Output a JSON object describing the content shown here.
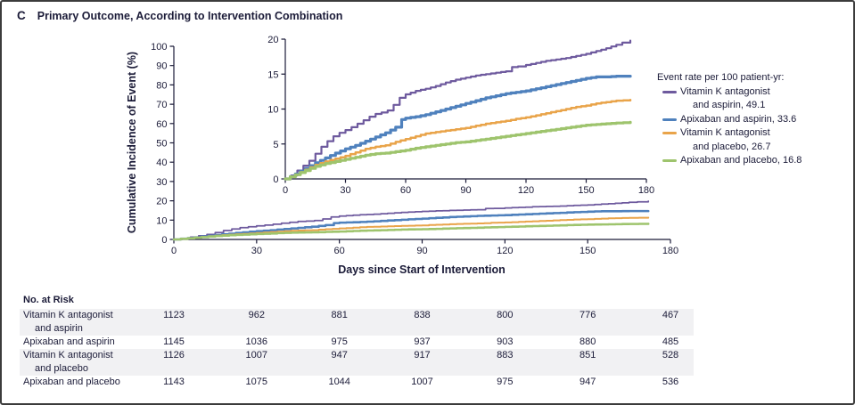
{
  "panel": {
    "letter": "C",
    "title": "Primary Outcome, According to Intervention Combination"
  },
  "chart_data": {
    "type": "line",
    "subtype": "kaplan-meier-cumulative-incidence",
    "xlabel": "Days since Start of Intervention",
    "ylabel": "Cumulative Incidence of Event (%)",
    "axis_color": "#1b1b38",
    "main_axis": {
      "xlim": [
        0,
        180
      ],
      "ylim": [
        0,
        100
      ],
      "xticks": [
        0,
        30,
        60,
        90,
        120,
        150,
        180
      ],
      "yticks": [
        0,
        10,
        20,
        30,
        40,
        50,
        60,
        70,
        80,
        90,
        100
      ],
      "grid": false
    },
    "inset_axis": {
      "xlim": [
        0,
        180
      ],
      "ylim": [
        0,
        20
      ],
      "xticks": [
        0,
        30,
        60,
        90,
        120,
        150,
        180
      ],
      "yticks": [
        0,
        5,
        10,
        15,
        20
      ],
      "grid": false
    },
    "legend_position": "right",
    "series": [
      {
        "id": "vka-aspirin",
        "name": "Vitamin K antagonist and aspirin",
        "event_rate_per_100_patient_yr": 49.1,
        "color": "#6e5a9e",
        "width": 2.2,
        "points": [
          [
            0,
            0
          ],
          [
            3,
            0.5
          ],
          [
            6,
            1.2
          ],
          [
            9,
            1.9
          ],
          [
            12,
            2.6
          ],
          [
            15,
            3.6
          ],
          [
            18,
            4.6
          ],
          [
            21,
            5.4
          ],
          [
            24,
            6.1
          ],
          [
            27,
            6.6
          ],
          [
            30,
            7.0
          ],
          [
            33,
            7.4
          ],
          [
            36,
            7.9
          ],
          [
            39,
            8.4
          ],
          [
            42,
            8.9
          ],
          [
            45,
            9.3
          ],
          [
            48,
            9.5
          ],
          [
            51,
            9.8
          ],
          [
            54,
            10.6
          ],
          [
            57,
            11.6
          ],
          [
            60,
            12.1
          ],
          [
            65,
            12.6
          ],
          [
            70,
            12.9
          ],
          [
            75,
            13.3
          ],
          [
            80,
            13.8
          ],
          [
            85,
            14.2
          ],
          [
            90,
            14.5
          ],
          [
            95,
            14.8
          ],
          [
            100,
            15.0
          ],
          [
            105,
            15.2
          ],
          [
            110,
            15.4
          ],
          [
            113,
            16.0
          ],
          [
            116,
            16.1
          ],
          [
            120,
            16.3
          ],
          [
            125,
            16.6
          ],
          [
            130,
            16.9
          ],
          [
            135,
            17.1
          ],
          [
            140,
            17.3
          ],
          [
            145,
            17.6
          ],
          [
            150,
            17.9
          ],
          [
            155,
            18.3
          ],
          [
            160,
            18.7
          ],
          [
            165,
            19.2
          ],
          [
            168,
            19.5
          ],
          [
            172,
            19.8
          ]
        ]
      },
      {
        "id": "apixaban-aspirin",
        "name": "Apixaban and aspirin",
        "event_rate_per_100_patient_yr": 33.6,
        "color": "#4f81bd",
        "width": 3.2,
        "points": [
          [
            0,
            0
          ],
          [
            5,
            0.7
          ],
          [
            10,
            1.5
          ],
          [
            15,
            2.3
          ],
          [
            20,
            3.0
          ],
          [
            25,
            3.7
          ],
          [
            30,
            4.3
          ],
          [
            35,
            4.8
          ],
          [
            40,
            5.4
          ],
          [
            45,
            6.0
          ],
          [
            50,
            6.6
          ],
          [
            55,
            7.4
          ],
          [
            58,
            8.5
          ],
          [
            60,
            8.7
          ],
          [
            65,
            8.9
          ],
          [
            70,
            9.2
          ],
          [
            75,
            9.6
          ],
          [
            80,
            10.0
          ],
          [
            85,
            10.4
          ],
          [
            90,
            10.8
          ],
          [
            95,
            11.2
          ],
          [
            100,
            11.6
          ],
          [
            105,
            11.9
          ],
          [
            110,
            12.2
          ],
          [
            115,
            12.4
          ],
          [
            120,
            12.6
          ],
          [
            125,
            12.9
          ],
          [
            130,
            13.2
          ],
          [
            135,
            13.5
          ],
          [
            140,
            13.8
          ],
          [
            145,
            14.1
          ],
          [
            150,
            14.4
          ],
          [
            155,
            14.6
          ],
          [
            160,
            14.6
          ],
          [
            165,
            14.7
          ],
          [
            172,
            14.7
          ]
        ]
      },
      {
        "id": "vka-placebo",
        "name": "Vitamin K antagonist and placebo",
        "event_rate_per_100_patient_yr": 26.7,
        "color": "#e9a44a",
        "width": 2.5,
        "points": [
          [
            0,
            0
          ],
          [
            5,
            0.6
          ],
          [
            10,
            1.3
          ],
          [
            15,
            2.0
          ],
          [
            20,
            2.5
          ],
          [
            25,
            2.9
          ],
          [
            30,
            3.3
          ],
          [
            35,
            3.8
          ],
          [
            40,
            4.3
          ],
          [
            45,
            4.6
          ],
          [
            50,
            4.8
          ],
          [
            55,
            5.3
          ],
          [
            60,
            5.7
          ],
          [
            65,
            6.1
          ],
          [
            70,
            6.5
          ],
          [
            75,
            6.7
          ],
          [
            80,
            6.9
          ],
          [
            85,
            7.1
          ],
          [
            90,
            7.3
          ],
          [
            95,
            7.6
          ],
          [
            100,
            7.9
          ],
          [
            105,
            8.1
          ],
          [
            110,
            8.3
          ],
          [
            115,
            8.6
          ],
          [
            120,
            8.8
          ],
          [
            125,
            9.1
          ],
          [
            130,
            9.4
          ],
          [
            135,
            9.7
          ],
          [
            140,
            10.0
          ],
          [
            145,
            10.3
          ],
          [
            150,
            10.5
          ],
          [
            155,
            10.8
          ],
          [
            160,
            11.0
          ],
          [
            165,
            11.2
          ],
          [
            172,
            11.3
          ]
        ]
      },
      {
        "id": "apixaban-placebo",
        "name": "Apixaban and placebo",
        "event_rate_per_100_patient_yr": 16.8,
        "color": "#9ec46d",
        "width": 3.2,
        "points": [
          [
            0,
            0
          ],
          [
            5,
            0.6
          ],
          [
            10,
            1.2
          ],
          [
            15,
            1.8
          ],
          [
            20,
            2.2
          ],
          [
            25,
            2.5
          ],
          [
            30,
            2.8
          ],
          [
            35,
            3.1
          ],
          [
            40,
            3.4
          ],
          [
            45,
            3.6
          ],
          [
            50,
            3.7
          ],
          [
            55,
            3.9
          ],
          [
            60,
            4.1
          ],
          [
            65,
            4.4
          ],
          [
            70,
            4.6
          ],
          [
            75,
            4.8
          ],
          [
            80,
            5.0
          ],
          [
            85,
            5.2
          ],
          [
            90,
            5.3
          ],
          [
            95,
            5.5
          ],
          [
            100,
            5.7
          ],
          [
            105,
            5.9
          ],
          [
            110,
            6.1
          ],
          [
            115,
            6.3
          ],
          [
            120,
            6.5
          ],
          [
            125,
            6.7
          ],
          [
            130,
            6.9
          ],
          [
            135,
            7.1
          ],
          [
            140,
            7.3
          ],
          [
            145,
            7.5
          ],
          [
            150,
            7.7
          ],
          [
            155,
            7.8
          ],
          [
            160,
            7.9
          ],
          [
            165,
            8.0
          ],
          [
            172,
            8.1
          ]
        ]
      }
    ]
  },
  "legend": {
    "title": "Event rate per 100 patient-yr:",
    "entries": [
      {
        "series_id": "vka-aspirin",
        "color": "#6e5a9e",
        "lines": [
          "Vitamin K antagonist",
          "and aspirin, 49.1"
        ]
      },
      {
        "series_id": "apixaban-aspirin",
        "color": "#4f81bd",
        "lines": [
          "Apixaban and aspirin, 33.6"
        ]
      },
      {
        "series_id": "vka-placebo",
        "color": "#e9a44a",
        "lines": [
          "Vitamin K antagonist",
          "and placebo, 26.7"
        ]
      },
      {
        "series_id": "apixaban-placebo",
        "color": "#9ec46d",
        "lines": [
          "Apixaban and placebo, 16.8"
        ]
      }
    ]
  },
  "risk_table": {
    "header": "No. at Risk",
    "days": [
      0,
      30,
      60,
      90,
      120,
      150,
      180
    ],
    "rows": [
      {
        "label_lines": [
          "Vitamin K antagonist",
          "and aspirin"
        ],
        "values": [
          1123,
          962,
          881,
          838,
          800,
          776,
          467
        ],
        "shaded": true
      },
      {
        "label_lines": [
          "Apixaban and aspirin"
        ],
        "values": [
          1145,
          1036,
          975,
          937,
          903,
          880,
          485
        ],
        "shaded": false
      },
      {
        "label_lines": [
          "Vitamin K antagonist",
          "and placebo"
        ],
        "values": [
          1126,
          1007,
          947,
          917,
          883,
          851,
          528
        ],
        "shaded": true
      },
      {
        "label_lines": [
          "Apixaban and placebo"
        ],
        "values": [
          1143,
          1075,
          1044,
          1007,
          975,
          947,
          536
        ],
        "shaded": false
      }
    ]
  }
}
